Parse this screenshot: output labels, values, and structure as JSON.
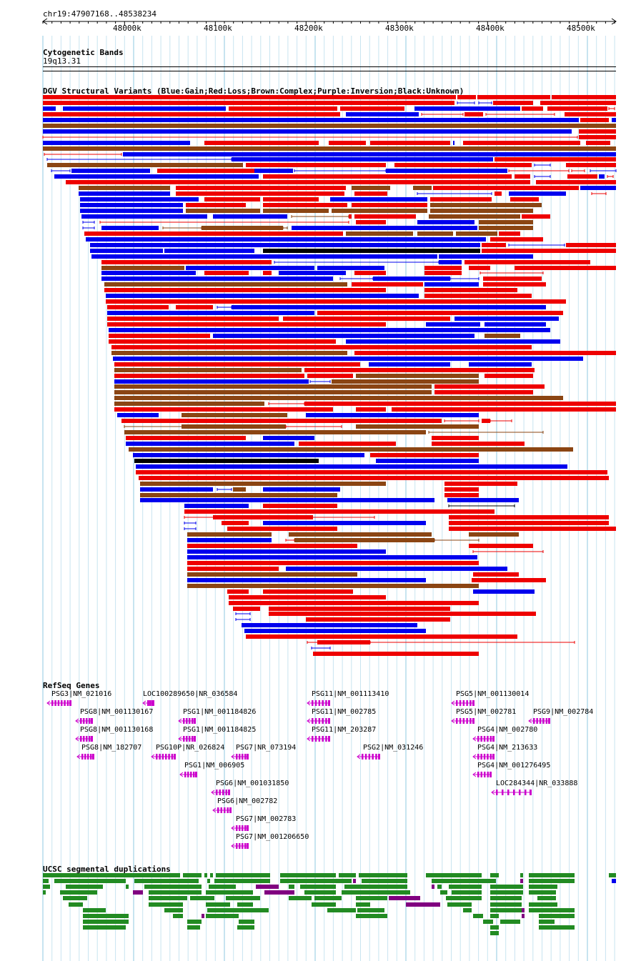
{
  "region": {
    "label": "chr19:47907168..48538234",
    "start": 47907168,
    "end": 48538234
  },
  "ruler": {
    "ticks": [
      "48000k",
      "48100k",
      "48200k",
      "48300k",
      "48400k",
      "48500k"
    ]
  },
  "cytobands": {
    "title": "Cytogenetic Bands",
    "band": "19q13.31"
  },
  "dgv": {
    "title": "DGV Structural Variants (Blue:Gain;Red:Loss;Brown:Complex;Purple:Inversion;Black:Unknown)",
    "colors": {
      "gain": "#0000ee",
      "loss": "#ee0000",
      "complex": "#8b4513",
      "inversion": "#800080",
      "unknown": "#000000"
    }
  },
  "refseq": {
    "title": "RefSeq Genes",
    "color": "#cc00cc",
    "genes": [
      "PSG3|NM_021016",
      "LOC100289650|NR_036584",
      "PSG11|NM_001113410",
      "PSG5|NM_001130014",
      "PSG8|NM_001130167",
      "PSG1|NM_001184826",
      "PSG11|NM_002785",
      "PSG5|NM_002781",
      "PSG9|NM_002784",
      "PSG8|NM_001130168",
      "PSG1|NM_001184825",
      "PSG11|NM_203287",
      "PSG4|NM_002780",
      "PSG8|NM_182707",
      "PSG10P|NR_026824",
      "PSG7|NR_073194",
      "PSG2|NM_031246",
      "PSG4|NM_213633",
      "PSG1|NM_006905",
      "PSG4|NM_001276495",
      "PSG6|NM_001031850",
      "LOC284344|NR_033888",
      "PSG6|NM_002782",
      "PSG7|NM_002783",
      "PSG7|NM_001206650"
    ]
  },
  "segdups": {
    "title": "UCSC segmental duplications",
    "colors": {
      "green": "#228b22",
      "purple": "#800080",
      "blue": "#0000ee"
    }
  }
}
